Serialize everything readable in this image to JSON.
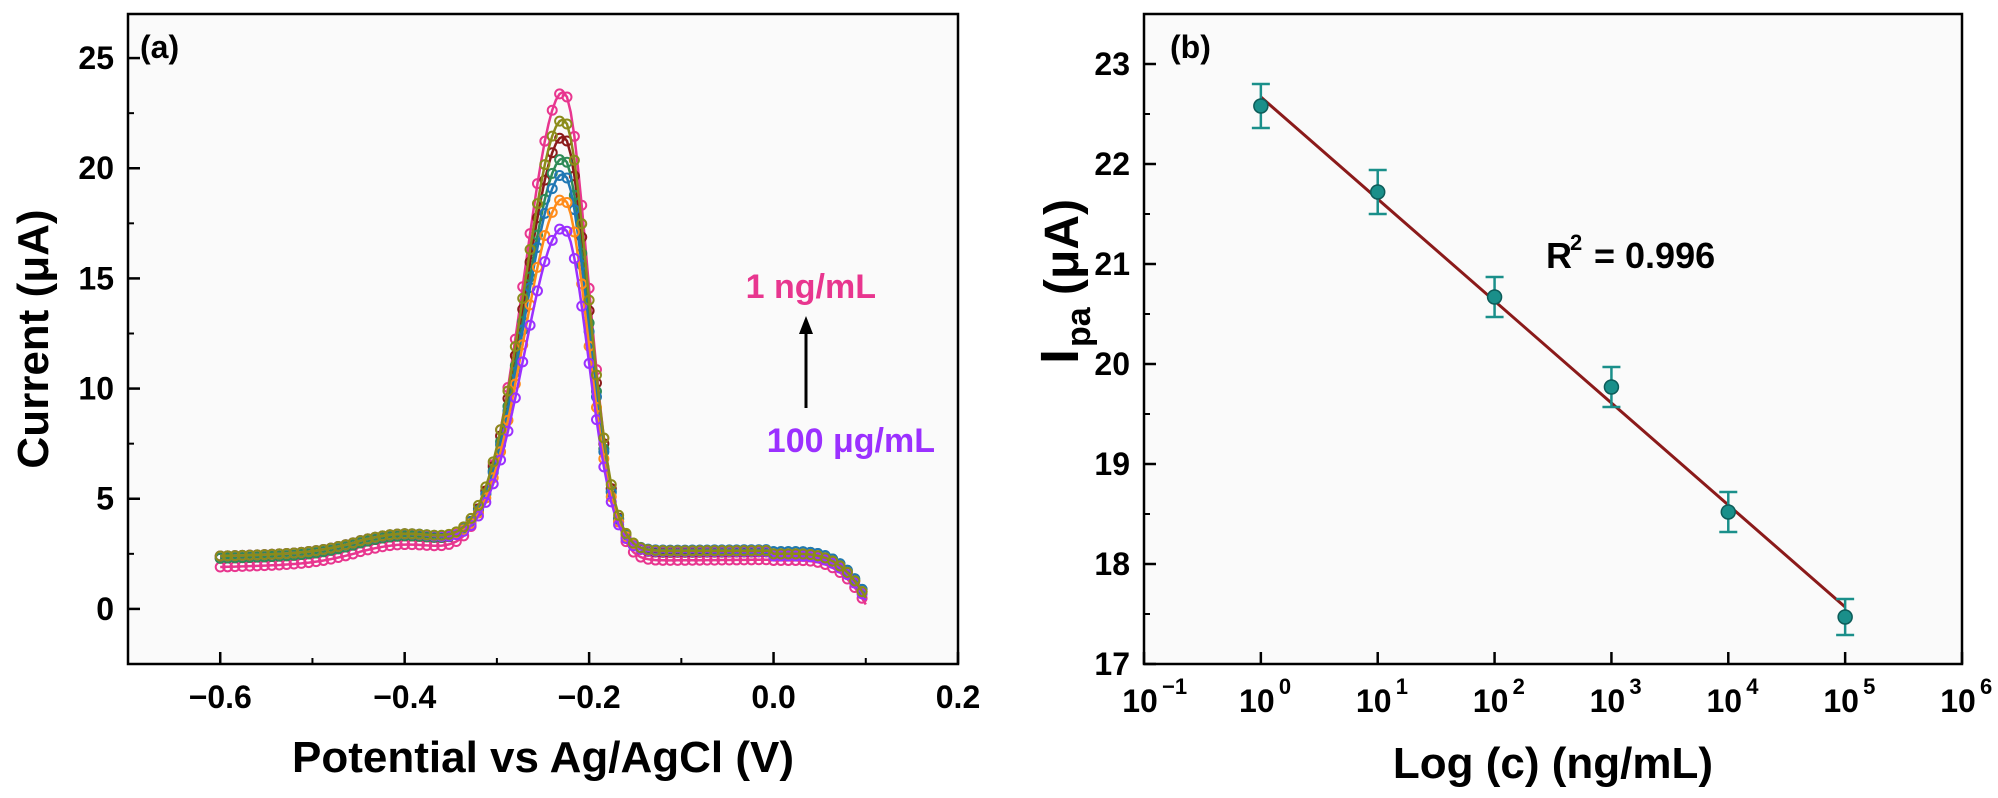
{
  "chart_data": [
    {
      "panel_label": "(a)",
      "type": "line",
      "xlabel": "Potential vs Ag/AgCl (V)",
      "ylabel": "Current (μA)",
      "xlim": [
        -0.7,
        0.2
      ],
      "ylim": [
        -2.5,
        27
      ],
      "x_ticks": [
        -0.6,
        -0.4,
        -0.2,
        0.0,
        0.2
      ],
      "x_tick_labels": [
        "−0.6",
        "−0.4",
        "−0.2",
        "0.0",
        "0.2"
      ],
      "y_ticks": [
        0,
        5,
        10,
        15,
        20,
        25
      ],
      "y_tick_labels": [
        "0",
        "5",
        "10",
        "15",
        "20",
        "25"
      ],
      "grid": false,
      "marker": "open-circle",
      "annotations": [
        {
          "text": "1 ng/mL",
          "color": "#e8368f"
        },
        {
          "text": "100 μg/mL",
          "color": "#9b30ff"
        }
      ],
      "series": [
        {
          "color": "#e8368f",
          "peak_x": -0.228,
          "peak_y": 23.2,
          "base_left": 1.9,
          "base_right": 2.2
        },
        {
          "color": "#8b1a1a",
          "peak_x": -0.228,
          "peak_y": 21.2,
          "base_left": 2.3,
          "base_right": 2.5
        },
        {
          "color": "#2e8b57",
          "peak_x": -0.228,
          "peak_y": 20.2,
          "base_left": 2.3,
          "base_right": 2.6
        },
        {
          "color": "#1f77b4",
          "peak_x": -0.228,
          "peak_y": 19.5,
          "base_left": 2.4,
          "base_right": 2.6
        },
        {
          "color": "#ff8c1a",
          "peak_x": -0.228,
          "peak_y": 18.4,
          "base_left": 2.4,
          "base_right": 2.5
        },
        {
          "color": "#9b30ff",
          "peak_x": -0.228,
          "peak_y": 17.1,
          "base_left": 2.4,
          "base_right": 2.4
        },
        {
          "color": "#8c8c1a",
          "peak_x": -0.228,
          "peak_y": 22.0,
          "base_left": 2.4,
          "base_right": 2.5
        }
      ]
    },
    {
      "panel_label": "(b)",
      "type": "scatter",
      "xlabel": "Log (c) (ng/mL)",
      "ylabel_main": "I",
      "ylabel_sub": "pa",
      "ylabel_rest": "(μA)",
      "xscale": "log",
      "xlim": [
        0.1,
        1000000
      ],
      "ylim": [
        17,
        23.5
      ],
      "x_tick_exponents": [
        "−1",
        "0",
        "1",
        "2",
        "3",
        "4",
        "5",
        "6"
      ],
      "y_ticks": [
        17,
        18,
        19,
        20,
        21,
        22,
        23
      ],
      "y_tick_labels": [
        "17",
        "18",
        "19",
        "20",
        "21",
        "22",
        "23"
      ],
      "grid": false,
      "points": [
        {
          "x": 1,
          "y": 22.58,
          "err": 0.22
        },
        {
          "x": 10,
          "y": 21.72,
          "err": 0.22
        },
        {
          "x": 100,
          "y": 20.67,
          "err": 0.2
        },
        {
          "x": 1000,
          "y": 19.77,
          "err": 0.2
        },
        {
          "x": 10000,
          "y": 18.52,
          "err": 0.2
        },
        {
          "x": 100000,
          "y": 17.47,
          "err": 0.18
        }
      ],
      "point_color": "#1a8f8a",
      "fit_line": {
        "x": [
          1,
          100000
        ],
        "y": [
          22.67,
          17.57
        ],
        "color": "#8b1a1a"
      },
      "annotation": {
        "text_main": "R",
        "text_sup": "2",
        "text_rest": " = 0.996"
      }
    }
  ]
}
